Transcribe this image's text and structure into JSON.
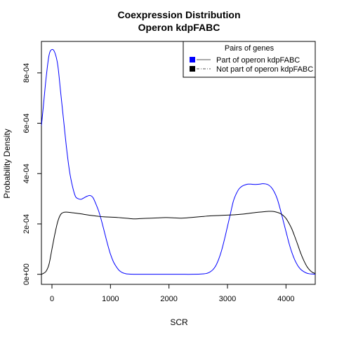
{
  "chart_data": {
    "type": "line",
    "title": "Coexpression Distribution",
    "subtitle": "Operon kdpFABC",
    "xlabel": "SCR",
    "ylabel": "Probability Density",
    "xlim": [
      -180,
      4500
    ],
    "ylim": [
      -4e-05,
      0.000925
    ],
    "x_ticks": [
      0,
      1000,
      2000,
      3000,
      4000
    ],
    "x_tick_labels": [
      "0",
      "1000",
      "2000",
      "3000",
      "4000"
    ],
    "y_ticks": [
      0,
      0.0002,
      0.0004,
      0.0006,
      0.0008
    ],
    "y_tick_labels": [
      "0e+00",
      "2e-04",
      "4e-04",
      "6e-04",
      "8e-04"
    ],
    "grid": false,
    "legend": {
      "title": "Pairs of genes",
      "placement": "top-right"
    },
    "series": [
      {
        "name": "Part of operon kdpFABC",
        "color": "#0000ff",
        "line_style": "solid",
        "x": [
          -180,
          -150,
          -100,
          -50,
          0,
          50,
          100,
          150,
          200,
          250,
          300,
          350,
          400,
          450,
          500,
          550,
          600,
          650,
          700,
          750,
          800,
          850,
          900,
          950,
          1000,
          1050,
          1100,
          1150,
          1200,
          1250,
          1300,
          1400,
          1600,
          1800,
          2000,
          2200,
          2400,
          2600,
          2650,
          2700,
          2750,
          2800,
          2850,
          2900,
          2950,
          3000,
          3050,
          3100,
          3150,
          3200,
          3250,
          3300,
          3350,
          3400,
          3450,
          3500,
          3550,
          3600,
          3650,
          3700,
          3750,
          3800,
          3850,
          3900,
          3950,
          4000,
          4050,
          4100,
          4150,
          4200,
          4250,
          4300,
          4350,
          4400,
          4450,
          4500
        ],
        "y": [
          0.00059,
          0.00066,
          0.00078,
          0.00087,
          0.000893,
          0.00088,
          0.00083,
          0.00072,
          0.00061,
          0.0005,
          0.00041,
          0.00035,
          0.00031,
          0.0003,
          0.000298,
          0.000304,
          0.00031,
          0.000313,
          0.000305,
          0.00028,
          0.00025,
          0.00021,
          0.000165,
          0.00012,
          8e-05,
          5e-05,
          3e-05,
          1.5e-05,
          7e-06,
          3e-06,
          1e-06,
          0.0,
          0.0,
          0.0,
          0.0,
          0.0,
          0.0,
          2e-06,
          4e-06,
          9e-06,
          1.8e-05,
          3.4e-05,
          6e-05,
          9.5e-05,
          0.00014,
          0.00019,
          0.00024,
          0.00029,
          0.00032,
          0.00034,
          0.00035,
          0.000355,
          0.000358,
          0.000358,
          0.000357,
          0.000357,
          0.000358,
          0.00036,
          0.000359,
          0.000355,
          0.000345,
          0.000327,
          0.0003,
          0.00026,
          0.000215,
          0.00017,
          0.000125,
          8.7e-05,
          5.7e-05,
          3.5e-05,
          2e-05,
          1.1e-05,
          5e-06,
          2e-06,
          1e-06,
          0.0
        ]
      },
      {
        "name": "Not part of operon kdpFABC",
        "color": "#000000",
        "line_style": "solid",
        "x": [
          -180,
          -150,
          -100,
          -50,
          0,
          50,
          100,
          150,
          200,
          250,
          300,
          400,
          500,
          600,
          700,
          800,
          900,
          1000,
          1100,
          1200,
          1300,
          1400,
          1500,
          1600,
          1700,
          1800,
          1900,
          2000,
          2100,
          2200,
          2300,
          2400,
          2500,
          2600,
          2700,
          2800,
          2900,
          3000,
          3100,
          3200,
          3300,
          3400,
          3500,
          3600,
          3700,
          3750,
          3800,
          3850,
          3900,
          3950,
          4000,
          4050,
          4100,
          4150,
          4200,
          4250,
          4300,
          4350,
          4400,
          4450,
          4500
        ],
        "y": [
          0.0,
          3e-06,
          1.2e-05,
          4e-05,
          0.0001,
          0.00016,
          0.00021,
          0.000238,
          0.000246,
          0.000247,
          0.000246,
          0.000243,
          0.00024,
          0.000236,
          0.000233,
          0.00023,
          0.000228,
          0.000227,
          0.000226,
          0.000224,
          0.000222,
          0.00022,
          0.000221,
          0.000222,
          0.000223,
          0.000224,
          0.000225,
          0.000225,
          0.000224,
          0.000223,
          0.000224,
          0.000226,
          0.000228,
          0.00023,
          0.000232,
          0.000233,
          0.000234,
          0.000235,
          0.000236,
          0.000238,
          0.00024,
          0.000243,
          0.000246,
          0.000248,
          0.00025,
          0.00025,
          0.000249,
          0.000246,
          0.000242,
          0.000234,
          0.000222,
          0.000203,
          0.00018,
          0.00015,
          0.000118,
          8.5e-05,
          5.7e-05,
          3.4e-05,
          1.8e-05,
          8e-06,
          3e-06
        ]
      }
    ]
  }
}
